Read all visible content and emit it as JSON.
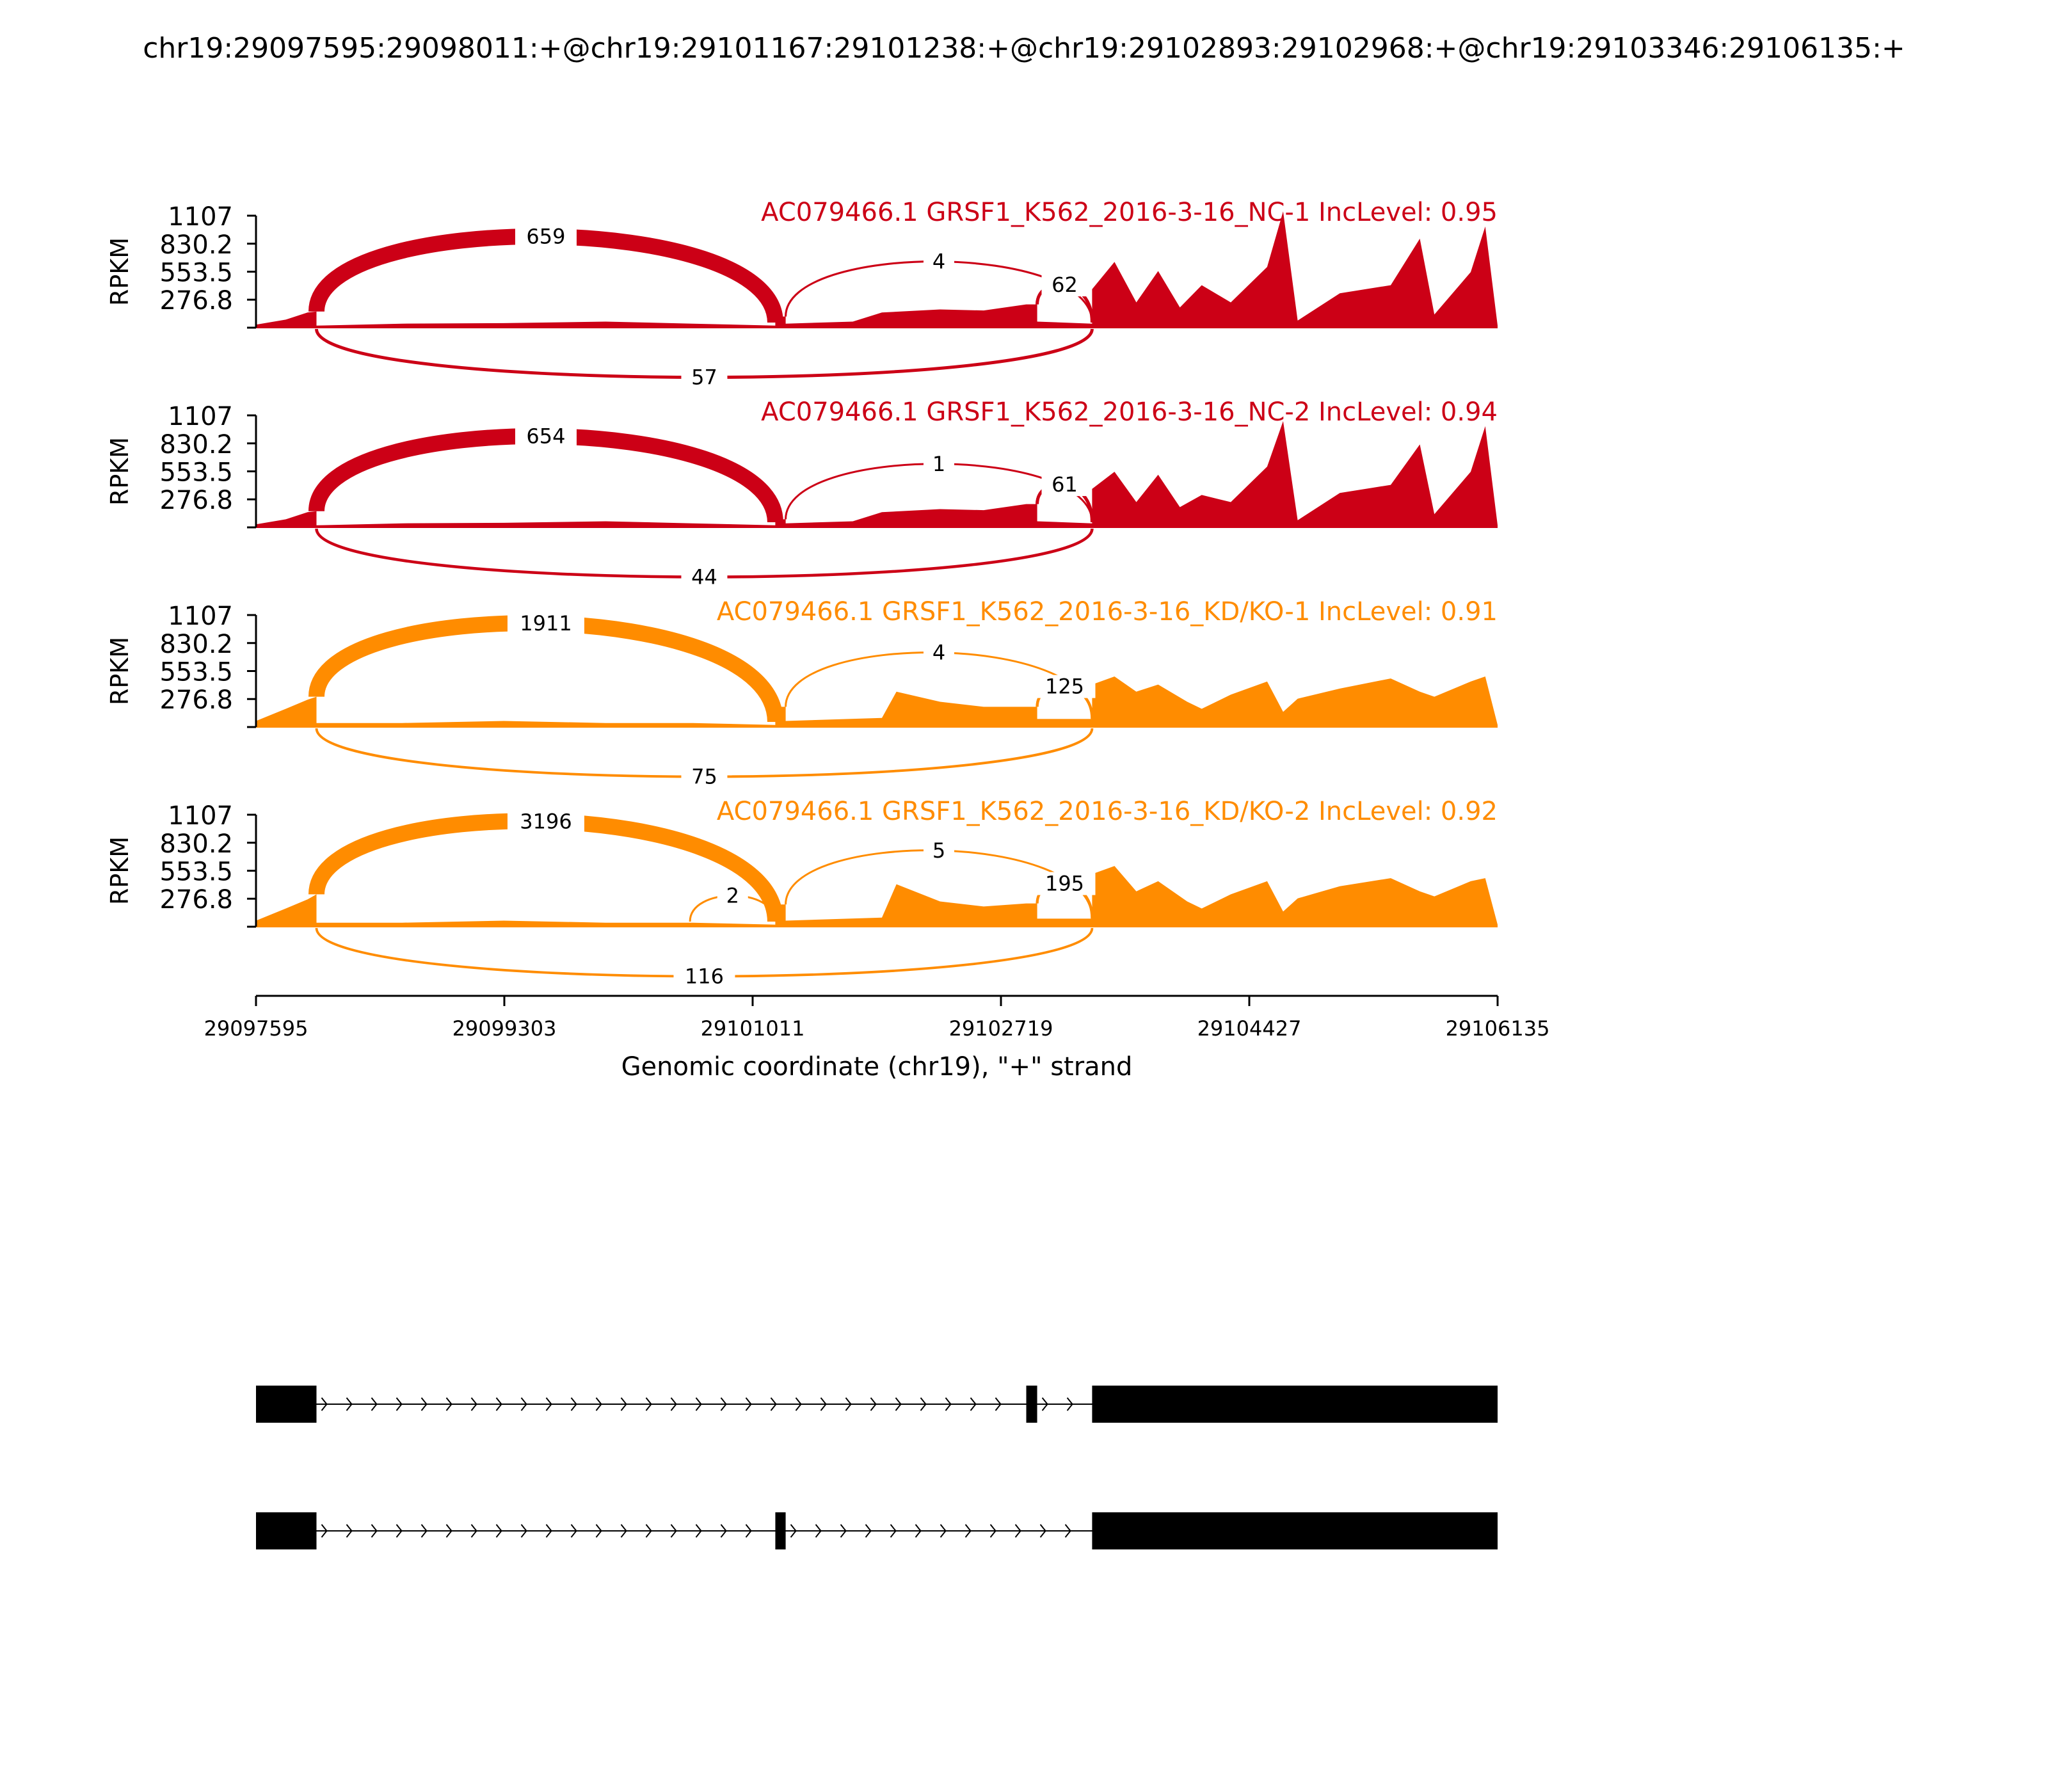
{
  "title": "chr19:29097595:29098011:+@chr19:29101167:29101238:+@chr19:29102893:29102968:+@chr19:29103346:29106135:+",
  "colors": {
    "nc": "#cc0016",
    "kd": "#ff8c00",
    "axis": "#000000",
    "structure": "#000000"
  },
  "chart_data": {
    "type": "area",
    "subtype": "sashimi",
    "xlabel": "Genomic coordinate (chr19), \"+\" strand",
    "xlim": [
      29097595,
      29106135
    ],
    "xticks": [
      "29097595",
      "29099303",
      "29101011",
      "29102719",
      "29104427",
      "29106135"
    ],
    "ylabel": "RPKM",
    "ylim": [
      0,
      1107
    ],
    "yticks": [
      "276.8",
      "553.5",
      "830.2",
      "1107"
    ],
    "exons": [
      [
        29097595,
        29098011
      ],
      [
        29101167,
        29101238
      ],
      [
        29102893,
        29102968
      ],
      [
        29103346,
        29106135
      ]
    ],
    "samples": [
      {
        "label": "AC079466.1 GRSF1_K562_2016-3-16_NC-1 IncLevel: 0.95",
        "group": "nc",
        "coverage_points": [
          [
            29097595,
            30
          ],
          [
            29097800,
            80
          ],
          [
            29097950,
            150
          ],
          [
            29098011,
            160
          ],
          [
            29098011,
            20
          ],
          [
            29098600,
            40
          ],
          [
            29099300,
            45
          ],
          [
            29100000,
            60
          ],
          [
            29100600,
            40
          ],
          [
            29101167,
            20
          ],
          [
            29101167,
            110
          ],
          [
            29101238,
            110
          ],
          [
            29101238,
            40
          ],
          [
            29101700,
            60
          ],
          [
            29101900,
            150
          ],
          [
            29102300,
            180
          ],
          [
            29102600,
            170
          ],
          [
            29102893,
            230
          ],
          [
            29102968,
            230
          ],
          [
            29102968,
            60
          ],
          [
            29103346,
            40
          ],
          [
            29103346,
            380
          ],
          [
            29103500,
            650
          ],
          [
            29103650,
            250
          ],
          [
            29103800,
            560
          ],
          [
            29103950,
            200
          ],
          [
            29104100,
            420
          ],
          [
            29104300,
            250
          ],
          [
            29104550,
            600
          ],
          [
            29104660,
            1150
          ],
          [
            29104760,
            70
          ],
          [
            29105050,
            340
          ],
          [
            29105400,
            420
          ],
          [
            29105600,
            880
          ],
          [
            29105700,
            130
          ],
          [
            29105950,
            550
          ],
          [
            29106050,
            1000
          ],
          [
            29106135,
            20
          ]
        ],
        "junctions": [
          {
            "from": 29098011,
            "to": 29101167,
            "count": "659",
            "side": "above"
          },
          {
            "from": 29101238,
            "to": 29103346,
            "count": "4",
            "side": "above"
          },
          {
            "from": 29102968,
            "to": 29103346,
            "count": "62",
            "side": "above"
          },
          {
            "from": 29098011,
            "to": 29103346,
            "count": "57",
            "side": "below"
          }
        ]
      },
      {
        "label": "AC079466.1 GRSF1_K562_2016-3-16_NC-2 IncLevel: 0.94",
        "group": "nc",
        "coverage_points": [
          [
            29097595,
            30
          ],
          [
            29097800,
            80
          ],
          [
            29097950,
            150
          ],
          [
            29098011,
            160
          ],
          [
            29098011,
            20
          ],
          [
            29098600,
            40
          ],
          [
            29099300,
            45
          ],
          [
            29100000,
            60
          ],
          [
            29100600,
            40
          ],
          [
            29101167,
            20
          ],
          [
            29101167,
            80
          ],
          [
            29101238,
            80
          ],
          [
            29101238,
            40
          ],
          [
            29101700,
            60
          ],
          [
            29101900,
            150
          ],
          [
            29102300,
            180
          ],
          [
            29102600,
            170
          ],
          [
            29102893,
            230
          ],
          [
            29102968,
            230
          ],
          [
            29102968,
            60
          ],
          [
            29103346,
            40
          ],
          [
            29103346,
            380
          ],
          [
            29103500,
            550
          ],
          [
            29103650,
            250
          ],
          [
            29103800,
            520
          ],
          [
            29103950,
            200
          ],
          [
            29104100,
            320
          ],
          [
            29104300,
            250
          ],
          [
            29104550,
            600
          ],
          [
            29104660,
            1050
          ],
          [
            29104760,
            70
          ],
          [
            29105050,
            340
          ],
          [
            29105400,
            420
          ],
          [
            29105600,
            820
          ],
          [
            29105700,
            130
          ],
          [
            29105950,
            550
          ],
          [
            29106050,
            1000
          ],
          [
            29106135,
            20
          ]
        ],
        "junctions": [
          {
            "from": 29098011,
            "to": 29101167,
            "count": "654",
            "side": "above"
          },
          {
            "from": 29101238,
            "to": 29103346,
            "count": "1",
            "side": "above"
          },
          {
            "from": 29102968,
            "to": 29103346,
            "count": "61",
            "side": "above"
          },
          {
            "from": 29098011,
            "to": 29103346,
            "count": "44",
            "side": "below"
          }
        ]
      },
      {
        "label": "AC079466.1 GRSF1_K562_2016-3-16_KD/KO-1 IncLevel: 0.91",
        "group": "kd",
        "coverage_points": [
          [
            29097595,
            60
          ],
          [
            29097800,
            180
          ],
          [
            29097950,
            270
          ],
          [
            29098011,
            300
          ],
          [
            29098011,
            40
          ],
          [
            29098600,
            40
          ],
          [
            29099300,
            60
          ],
          [
            29100000,
            40
          ],
          [
            29100600,
            40
          ],
          [
            29101167,
            20
          ],
          [
            29101167,
            200
          ],
          [
            29101238,
            200
          ],
          [
            29101238,
            60
          ],
          [
            29101900,
            90
          ],
          [
            29102000,
            350
          ],
          [
            29102300,
            250
          ],
          [
            29102600,
            200
          ],
          [
            29102893,
            200
          ],
          [
            29102968,
            200
          ],
          [
            29102968,
            80
          ],
          [
            29103346,
            80
          ],
          [
            29103346,
            420
          ],
          [
            29103500,
            500
          ],
          [
            29103650,
            350
          ],
          [
            29103800,
            420
          ],
          [
            29104000,
            250
          ],
          [
            29104100,
            180
          ],
          [
            29104300,
            320
          ],
          [
            29104550,
            450
          ],
          [
            29104660,
            150
          ],
          [
            29104760,
            280
          ],
          [
            29105050,
            380
          ],
          [
            29105400,
            480
          ],
          [
            29105600,
            350
          ],
          [
            29105700,
            300
          ],
          [
            29105950,
            450
          ],
          [
            29106050,
            500
          ],
          [
            29106135,
            20
          ]
        ],
        "junctions": [
          {
            "from": 29098011,
            "to": 29101167,
            "count": "1911",
            "side": "above"
          },
          {
            "from": 29101238,
            "to": 29103346,
            "count": "4",
            "side": "above"
          },
          {
            "from": 29102968,
            "to": 29103346,
            "count": "125",
            "side": "above"
          },
          {
            "from": 29098011,
            "to": 29103346,
            "count": "75",
            "side": "below"
          }
        ]
      },
      {
        "label": "AC079466.1 GRSF1_K562_2016-3-16_KD/KO-2 IncLevel: 0.92",
        "group": "kd",
        "coverage_points": [
          [
            29097595,
            60
          ],
          [
            29097800,
            180
          ],
          [
            29097950,
            270
          ],
          [
            29098011,
            320
          ],
          [
            29098011,
            40
          ],
          [
            29098600,
            40
          ],
          [
            29099300,
            60
          ],
          [
            29100000,
            40
          ],
          [
            29100600,
            40
          ],
          [
            29101167,
            20
          ],
          [
            29101167,
            220
          ],
          [
            29101238,
            220
          ],
          [
            29101238,
            60
          ],
          [
            29101900,
            90
          ],
          [
            29102000,
            420
          ],
          [
            29102300,
            250
          ],
          [
            29102600,
            200
          ],
          [
            29102893,
            230
          ],
          [
            29102968,
            230
          ],
          [
            29102968,
            80
          ],
          [
            29103346,
            80
          ],
          [
            29103346,
            520
          ],
          [
            29103500,
            600
          ],
          [
            29103650,
            350
          ],
          [
            29103800,
            450
          ],
          [
            29104000,
            250
          ],
          [
            29104100,
            180
          ],
          [
            29104300,
            320
          ],
          [
            29104550,
            450
          ],
          [
            29104660,
            150
          ],
          [
            29104760,
            280
          ],
          [
            29105050,
            400
          ],
          [
            29105400,
            480
          ],
          [
            29105600,
            350
          ],
          [
            29105700,
            300
          ],
          [
            29105950,
            450
          ],
          [
            29106050,
            480
          ],
          [
            29106135,
            20
          ]
        ],
        "junctions": [
          {
            "from": 29098011,
            "to": 29101167,
            "count": "3196",
            "side": "above"
          },
          {
            "from": 29100580,
            "to": 29101167,
            "count": "2",
            "side": "above"
          },
          {
            "from": 29101238,
            "to": 29103346,
            "count": "5",
            "side": "above"
          },
          {
            "from": 29102968,
            "to": 29103346,
            "count": "195",
            "side": "above"
          },
          {
            "from": 29098011,
            "to": 29103346,
            "count": "116",
            "side": "below"
          }
        ]
      }
    ],
    "isoforms": [
      {
        "exons": [
          [
            29097595,
            29098011
          ],
          [
            29102893,
            29102968
          ],
          [
            29103346,
            29106135
          ]
        ]
      },
      {
        "exons": [
          [
            29097595,
            29098011
          ],
          [
            29101167,
            29101238
          ],
          [
            29103346,
            29106135
          ]
        ]
      }
    ]
  }
}
